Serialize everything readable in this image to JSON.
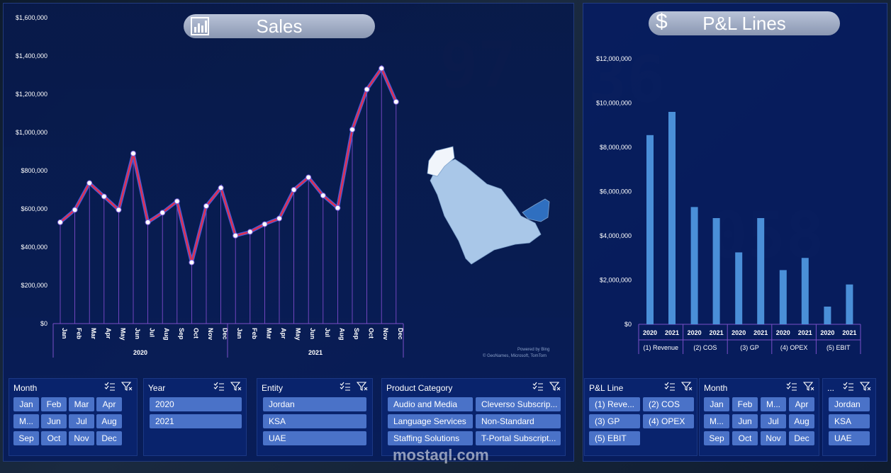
{
  "sales": {
    "title": "Sales",
    "chart_data": {
      "type": "line",
      "years": [
        "2020",
        "2021"
      ],
      "categories": [
        "Jan",
        "Feb",
        "Mar",
        "Apr",
        "May",
        "Jun",
        "Jul",
        "Aug",
        "Sep",
        "Oct",
        "Nov",
        "Dec",
        "Jan",
        "Feb",
        "Mar",
        "Apr",
        "May",
        "Jun",
        "Jul",
        "Aug",
        "Sep",
        "Oct",
        "Nov",
        "Dec"
      ],
      "values": [
        530000,
        595000,
        735000,
        665000,
        595000,
        890000,
        530000,
        580000,
        640000,
        320000,
        615000,
        710000,
        460000,
        480000,
        520000,
        550000,
        700000,
        765000,
        670000,
        605000,
        1015000,
        1225000,
        1335000,
        1160000
      ],
      "yticks": [
        "$0",
        "$200,000",
        "$400,000",
        "$600,000",
        "$800,000",
        "$1,000,000",
        "$1,200,000",
        "$1,400,000",
        "$1,600,000"
      ],
      "ylim": [
        0,
        1600000
      ],
      "line_color": "#e03050",
      "grid": false
    },
    "map_credit_1": "Powered by Bing",
    "map_credit_2": "© GeoNames, Microsoft, TomTom"
  },
  "pl": {
    "title": "P&L Lines",
    "chart_data": {
      "type": "bar",
      "groups": [
        "(1) Revenue",
        "(2) COS",
        "(3) GP",
        "(4) OPEX",
        "(5) EBIT"
      ],
      "years": [
        "2020",
        "2021"
      ],
      "values": [
        [
          8550000,
          9600000
        ],
        [
          5300000,
          4800000
        ],
        [
          3250000,
          4800000
        ],
        [
          2450000,
          3000000
        ],
        [
          800000,
          1800000
        ]
      ],
      "yticks": [
        "$0",
        "$2,000,000",
        "$4,000,000",
        "$6,000,000",
        "$8,000,000",
        "$10,000,000",
        "$12,000,000"
      ],
      "ylim": [
        0,
        12000000
      ],
      "bar_color": "#4a8fd8"
    }
  },
  "slicers": {
    "month": {
      "title": "Month",
      "items": [
        "Jan",
        "Feb",
        "Mar",
        "Apr",
        "M...",
        "Jun",
        "Jul",
        "Aug",
        "Sep",
        "Oct",
        "Nov",
        "Dec"
      ]
    },
    "year": {
      "title": "Year",
      "items": [
        "2020",
        "2021"
      ]
    },
    "entity": {
      "title": "Entity",
      "items": [
        "Jordan",
        "KSA",
        "UAE"
      ]
    },
    "product": {
      "title": "Product Category",
      "items": [
        "Audio and Media",
        "Cleverso Subscrip...",
        "Language Services",
        "Non-Standard",
        "Staffing Solutions",
        "T-Portal Subscript..."
      ]
    },
    "plline": {
      "title": "P&L Line",
      "items": [
        "(1) Reve...",
        "(2) COS",
        "(3) GP",
        "(4) OPEX",
        "(5) EBIT"
      ]
    },
    "month2": {
      "title": "Month",
      "items": [
        "Jan",
        "Feb",
        "M...",
        "Apr",
        "M...",
        "Jun",
        "Jul",
        "Aug",
        "Sep",
        "Oct",
        "Nov",
        "Dec"
      ]
    },
    "entity2": {
      "title": "...",
      "items": [
        "Jordan",
        "KSA",
        "UAE"
      ]
    }
  },
  "watermark": "mostaql.com"
}
